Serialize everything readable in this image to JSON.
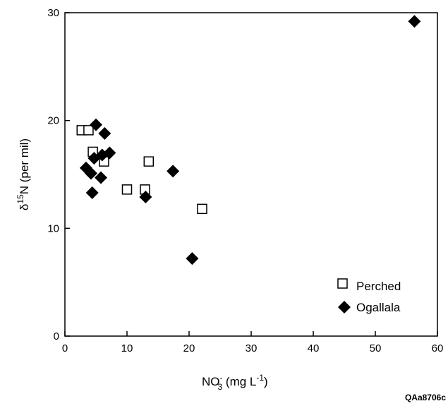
{
  "chart_data": {
    "type": "scatter",
    "xlabel_base": "NO",
    "xlabel_sub": "3",
    "xlabel_sup": "-",
    "xlabel_unit_a": " (mg L",
    "xlabel_unit_sup": "-1",
    "xlabel_unit_b": ")",
    "ylabel_prefix": "δ",
    "ylabel_sup": "15",
    "ylabel_rest": "N (per mil)",
    "xlim": [
      0,
      60
    ],
    "ylim": [
      0,
      30
    ],
    "xticks": [
      0,
      10,
      20,
      30,
      40,
      50,
      60
    ],
    "yticks": [
      0,
      10,
      20,
      30
    ],
    "grid": false,
    "legend_position": "bottom-right",
    "figure_id": "QAa8706c",
    "series": [
      {
        "name": "Perched",
        "marker": "open-square",
        "color": "#000000",
        "points": [
          {
            "x": 2.7,
            "y": 19.1
          },
          {
            "x": 3.8,
            "y": 19.1
          },
          {
            "x": 4.5,
            "y": 17.1
          },
          {
            "x": 6.3,
            "y": 16.2
          },
          {
            "x": 10.0,
            "y": 13.6
          },
          {
            "x": 12.9,
            "y": 13.6
          },
          {
            "x": 13.5,
            "y": 16.2
          },
          {
            "x": 22.1,
            "y": 11.8
          }
        ]
      },
      {
        "name": "Ogallala",
        "marker": "filled-diamond",
        "color": "#000000",
        "points": [
          {
            "x": 5.0,
            "y": 19.6
          },
          {
            "x": 6.4,
            "y": 18.8
          },
          {
            "x": 6.0,
            "y": 16.8
          },
          {
            "x": 7.2,
            "y": 17.0
          },
          {
            "x": 4.7,
            "y": 16.5
          },
          {
            "x": 3.4,
            "y": 15.6
          },
          {
            "x": 4.2,
            "y": 15.1
          },
          {
            "x": 5.8,
            "y": 14.7
          },
          {
            "x": 4.4,
            "y": 13.3
          },
          {
            "x": 13.0,
            "y": 12.9
          },
          {
            "x": 17.4,
            "y": 15.3
          },
          {
            "x": 20.5,
            "y": 7.2
          },
          {
            "x": 56.3,
            "y": 29.2
          }
        ]
      }
    ]
  }
}
